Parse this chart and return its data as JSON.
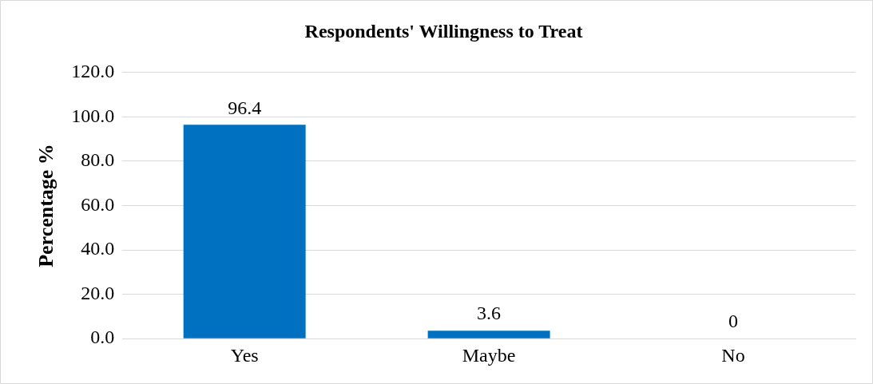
{
  "chart_data": {
    "type": "bar",
    "title": "Respondents' Willingness to Treat",
    "ylabel": "Percentage %",
    "categories": [
      "Yes",
      "Maybe",
      "No"
    ],
    "values": [
      96.4,
      3.6,
      0
    ],
    "color": "#0070c0",
    "ylim": [
      0,
      120
    ],
    "yticks": [
      {
        "value": 0,
        "label": "0.0"
      },
      {
        "value": 20,
        "label": "20.0"
      },
      {
        "value": 40,
        "label": "40.0"
      },
      {
        "value": 60,
        "label": "60.0"
      },
      {
        "value": 80,
        "label": "80.0"
      },
      {
        "value": 100,
        "label": "100.0"
      },
      {
        "value": 120,
        "label": "120.0"
      }
    ],
    "grid": "y",
    "data_labels": true,
    "legend": false
  }
}
